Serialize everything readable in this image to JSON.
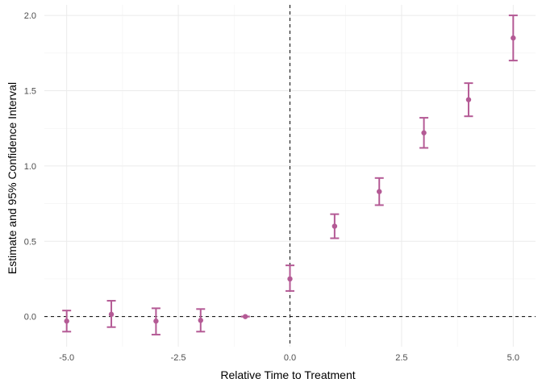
{
  "chart_data": {
    "type": "scatter",
    "title": "",
    "xlabel": "Relative Time to Treatment",
    "ylabel": "Estimate and 95% Confidence Interval",
    "xlim": [
      -5.5,
      5.5
    ],
    "ylim": [
      -0.2,
      2.07
    ],
    "x_ticks": [
      -5.0,
      -2.5,
      0.0,
      2.5,
      5.0
    ],
    "x_tick_labels": [
      "-5.0",
      "-2.5",
      "0.0",
      "2.5",
      "5.0"
    ],
    "y_ticks": [
      0.0,
      0.5,
      1.0,
      1.5,
      2.0
    ],
    "y_tick_labels": [
      "0.0",
      "0.5",
      "1.0",
      "1.5",
      "2.0"
    ],
    "reference_lines": {
      "x": 0,
      "y": 0
    },
    "grid": true,
    "color": "#b45a95",
    "series": [
      {
        "x": [
          -5,
          -4,
          -3,
          -2,
          -1,
          0,
          1,
          2,
          3,
          4,
          5
        ],
        "y": [
          -0.03,
          0.015,
          -0.03,
          -0.025,
          0.0,
          0.25,
          0.6,
          0.83,
          1.22,
          1.44,
          1.85
        ],
        "lower": [
          -0.1,
          -0.07,
          -0.12,
          -0.1,
          0.0,
          0.17,
          0.52,
          0.74,
          1.12,
          1.33,
          1.7
        ],
        "upper": [
          0.04,
          0.105,
          0.055,
          0.05,
          0.0,
          0.34,
          0.68,
          0.92,
          1.32,
          1.55,
          2.0
        ]
      }
    ]
  }
}
